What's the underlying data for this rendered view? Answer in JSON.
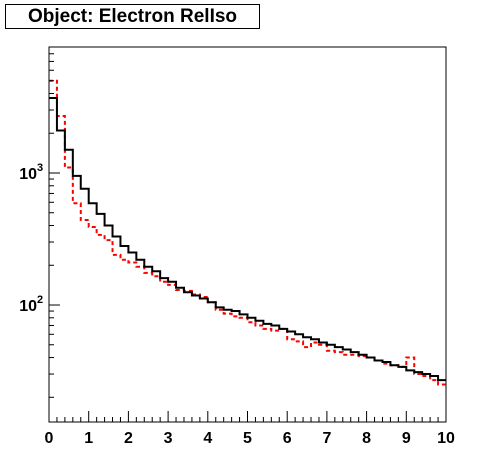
{
  "title": "Object: Electron RelIso",
  "chart_data": {
    "type": "histogram",
    "title": "Object: Electron RelIso",
    "xlabel": "",
    "ylabel": "",
    "xlim": [
      0,
      10
    ],
    "ylim": [
      13,
      9000
    ],
    "yscale": "log",
    "grid": false,
    "x_ticks": [
      0,
      1,
      2,
      3,
      4,
      5,
      6,
      7,
      8,
      9,
      10
    ],
    "y_ticks": [
      {
        "value": 100,
        "label_base": "10",
        "label_exp": "2"
      },
      {
        "value": 1000,
        "label_base": "10",
        "label_exp": "3"
      }
    ],
    "bin_edges": [
      0,
      0.2,
      0.4,
      0.6,
      0.8,
      1.0,
      1.2,
      1.4,
      1.6,
      1.8,
      2.0,
      2.2,
      2.4,
      2.6,
      2.8,
      3.0,
      3.2,
      3.4,
      3.6,
      3.8,
      4.0,
      4.2,
      4.4,
      4.6,
      4.8,
      5.0,
      5.2,
      5.4,
      5.6,
      5.8,
      6.0,
      6.2,
      6.4,
      6.6,
      6.8,
      7.0,
      7.2,
      7.4,
      7.6,
      7.8,
      8.0,
      8.2,
      8.4,
      8.6,
      8.8,
      9.0,
      9.2,
      9.4,
      9.6,
      9.8,
      10.0
    ],
    "series": [
      {
        "color": "#000000",
        "dash": "solid",
        "values": [
          3700,
          2100,
          1500,
          950,
          760,
          590,
          490,
          400,
          330,
          280,
          250,
          220,
          195,
          180,
          160,
          150,
          135,
          125,
          118,
          112,
          105,
          96,
          92,
          90,
          85,
          80,
          76,
          72,
          70,
          66,
          63,
          60,
          57,
          55,
          52,
          50,
          48,
          46,
          44,
          42,
          40,
          38,
          37,
          35,
          34,
          32,
          31,
          30,
          29,
          27
        ]
      },
      {
        "color": "#ff0000",
        "dash": "dashed",
        "values": [
          5000,
          2700,
          1100,
          590,
          440,
          390,
          340,
          310,
          240,
          220,
          210,
          195,
          175,
          165,
          150,
          142,
          130,
          128,
          120,
          115,
          105,
          92,
          86,
          82,
          80,
          74,
          70,
          66,
          64,
          66,
          55,
          53,
          48,
          52,
          50,
          45,
          44,
          42,
          42,
          41,
          40,
          38,
          36,
          35,
          34,
          40,
          30,
          29,
          27,
          25
        ]
      }
    ]
  }
}
